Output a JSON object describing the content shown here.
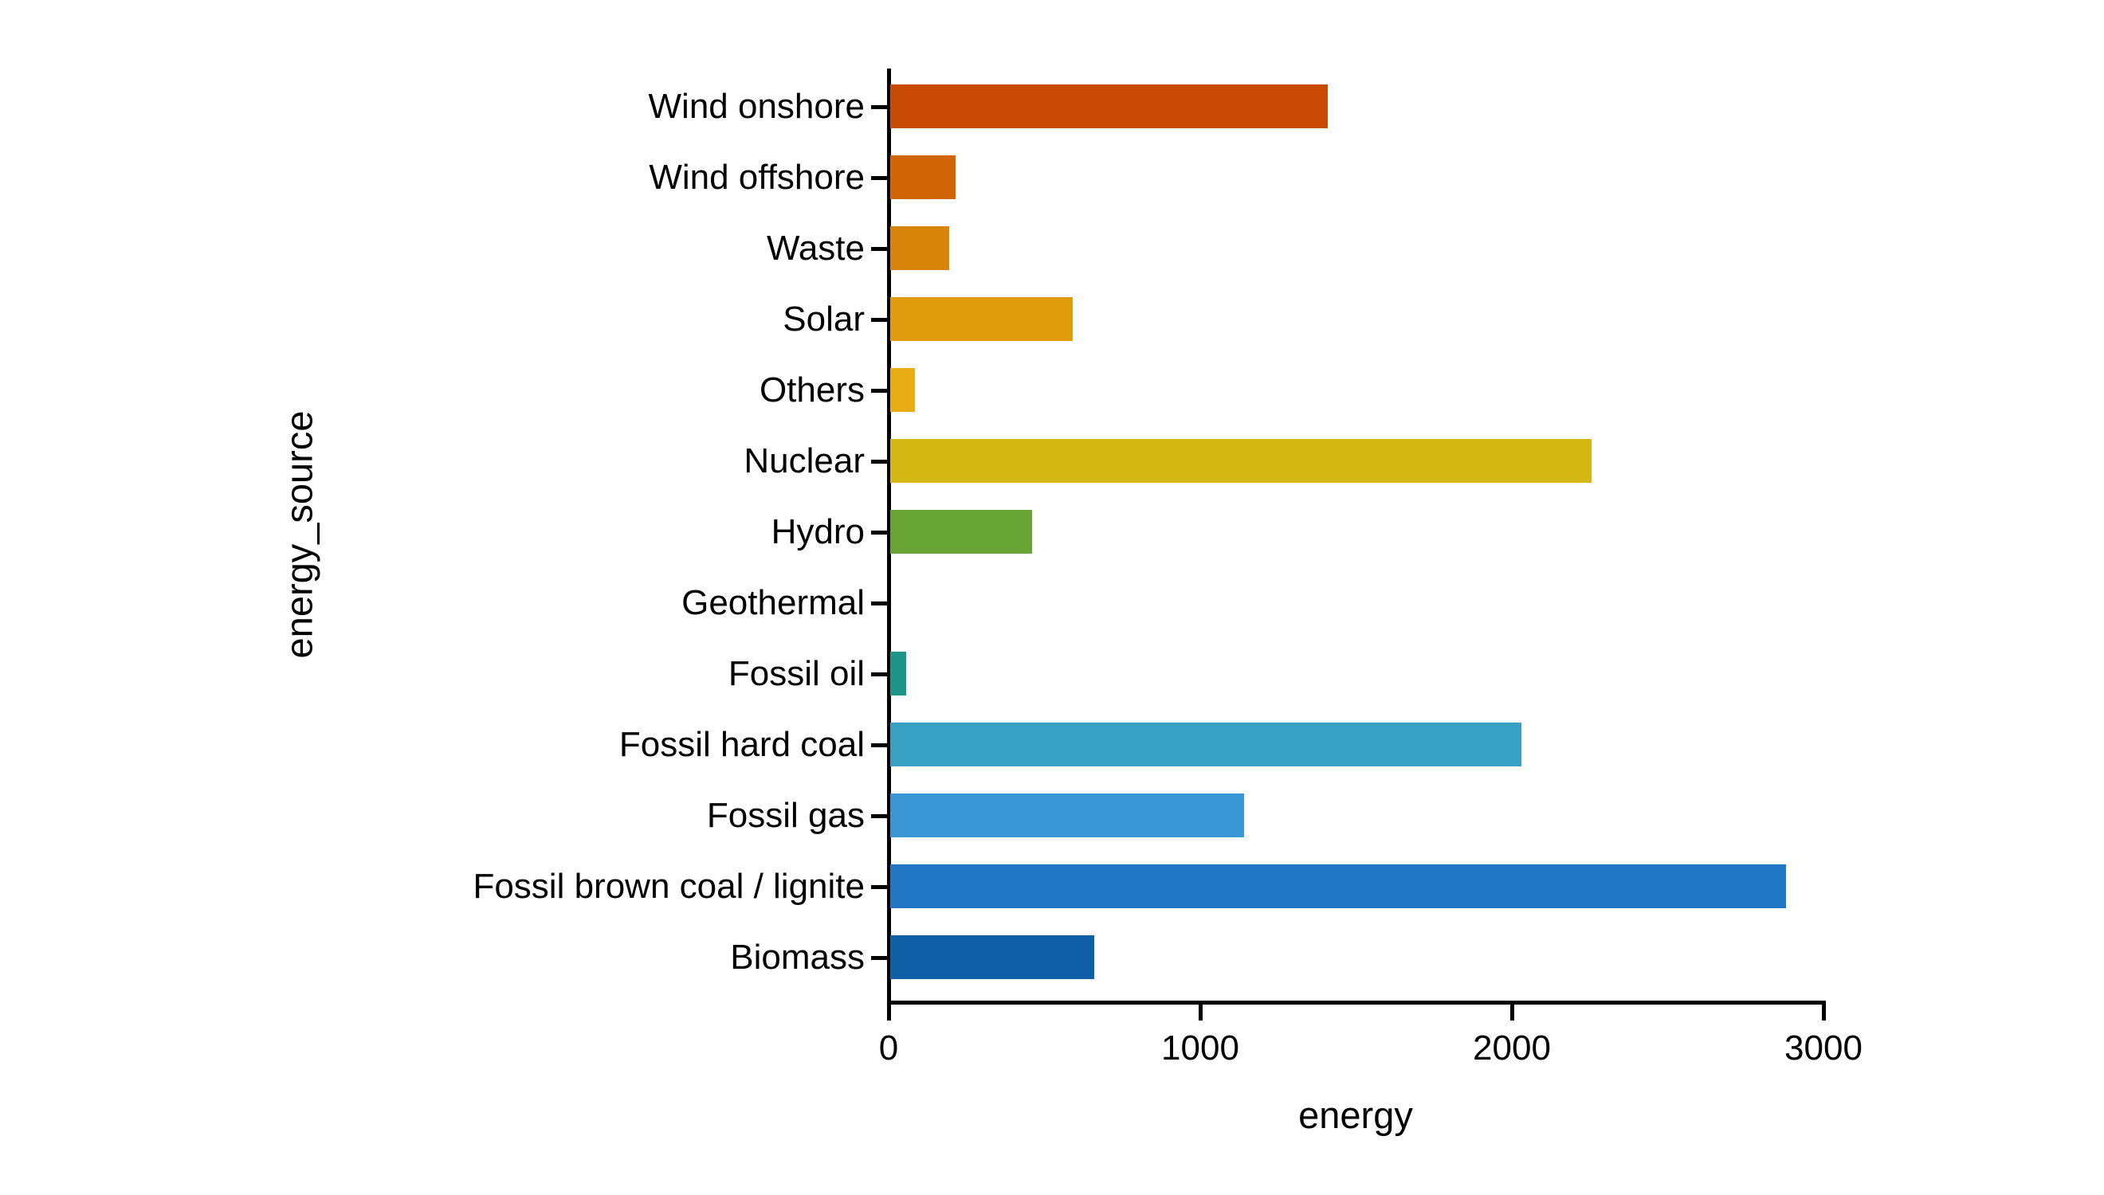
{
  "figure": {
    "background": "#ffffff",
    "axis_color": "#000000",
    "text_color": "#000000"
  },
  "chart_data": {
    "type": "bar",
    "orientation": "horizontal",
    "title": "",
    "xlabel": "energy",
    "ylabel": "energy_source",
    "xlim": [
      0,
      3000
    ],
    "x_ticks": [
      0,
      1000,
      2000,
      3000
    ],
    "x_tick_labels": [
      "0",
      "1000",
      "2000",
      "3000"
    ],
    "grid": false,
    "legend": false,
    "categories": [
      "Wind onshore",
      "Wind offshore",
      "Waste",
      "Solar",
      "Others",
      "Nuclear",
      "Hydro",
      "Geothermal",
      "Fossil oil",
      "Fossil hard coal",
      "Fossil gas",
      "Fossil brown coal / lignite",
      "Biomass"
    ],
    "values": [
      1405,
      210,
      190,
      585,
      80,
      2250,
      455,
      0,
      50,
      2025,
      1135,
      2875,
      655
    ],
    "bar_colors": [
      "#c94a04",
      "#d26606",
      "#d8830a",
      "#e09c0c",
      "#e9ad13",
      "#d5b714",
      "#68a433",
      "#44a25e",
      "#1f9489",
      "#38a0c2",
      "#3b96d6",
      "#2277c4",
      "#1060a8"
    ]
  }
}
